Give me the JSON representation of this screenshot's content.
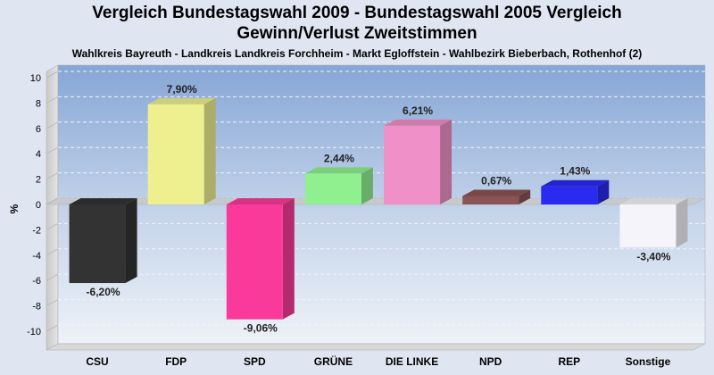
{
  "chart_data": {
    "type": "bar",
    "title": "Vergleich Bundestagswahl 2009 - Bundestagswahl 2005 Vergleich",
    "title_line2": "Gewinn/Verlust Zweitstimmen",
    "subtitle": "Wahlkreis Bayreuth - Landkreis Landkreis Forchheim - Markt Egloffstein - Wahlbezirk Bieberbach, Rothenhof (2)",
    "ylabel": "%",
    "xlabel": "",
    "ylim": [
      -10,
      10
    ],
    "yticks": [
      10,
      8,
      6,
      4,
      2,
      0,
      -2,
      -4,
      -6,
      -8,
      -10
    ],
    "grid": true,
    "categories": [
      "CSU",
      "FDP",
      "SPD",
      "GRÜNE",
      "DIE LINKE",
      "NPD",
      "REP",
      "Sonstige"
    ],
    "values": [
      -6.2,
      7.9,
      -9.06,
      2.44,
      6.21,
      0.67,
      1.43,
      -3.4
    ],
    "value_labels": [
      "-6,20%",
      "7,90%",
      "-9,06%",
      "2,44%",
      "6,21%",
      "0,67%",
      "1,43%",
      "-3,40%"
    ],
    "colors": [
      "#333333",
      "#eef090",
      "#fa3a9a",
      "#90f090",
      "#f090c8",
      "#8a5454",
      "#2a2af0",
      "#f4f4fa"
    ]
  }
}
